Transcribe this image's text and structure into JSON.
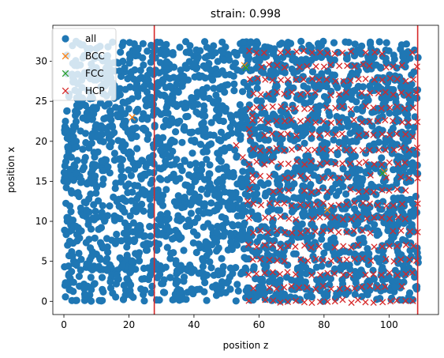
{
  "chart_data": {
    "type": "scatter",
    "title": "strain: 0.998",
    "xlabel": "position z",
    "ylabel": "position x",
    "xlim": [
      -3.4,
      115.2
    ],
    "ylim": [
      -1.65,
      34.5
    ],
    "xticks": [
      0,
      20,
      40,
      60,
      80,
      100
    ],
    "yticks": [
      0,
      5,
      10,
      15,
      20,
      25,
      30
    ],
    "grid": false,
    "legend_position": "top-left",
    "vertical_lines": [
      {
        "x": 27.8,
        "color": "#d62728"
      },
      {
        "x": 108.8,
        "color": "#d62728"
      }
    ],
    "series": [
      {
        "name": "all",
        "marker": "circle",
        "color": "#1f77b4",
        "description_of_extent": "dense filled cloud",
        "x_range": [
          0,
          109
        ],
        "y_range": [
          0,
          32.5
        ]
      },
      {
        "name": "BCC",
        "marker": "x",
        "color": "#ff7f0e",
        "points": [
          [
            21,
            23
          ],
          [
            55.5,
            29.5
          ],
          [
            98.5,
            16.2
          ],
          [
            81,
            11.4
          ]
        ]
      },
      {
        "name": "FCC",
        "marker": "x",
        "color": "#2ca02c",
        "points": [
          [
            56,
            29.2
          ],
          [
            98,
            16.0
          ]
        ]
      },
      {
        "name": "HCP",
        "marker": "x",
        "color": "#d62728",
        "description_of_extent": "crystalline lattice pattern",
        "x_range": [
          55,
          109
        ],
        "y_range": [
          0,
          32.5
        ],
        "z_spacing": 2.4,
        "x_spacing": 1.73
      }
    ]
  }
}
